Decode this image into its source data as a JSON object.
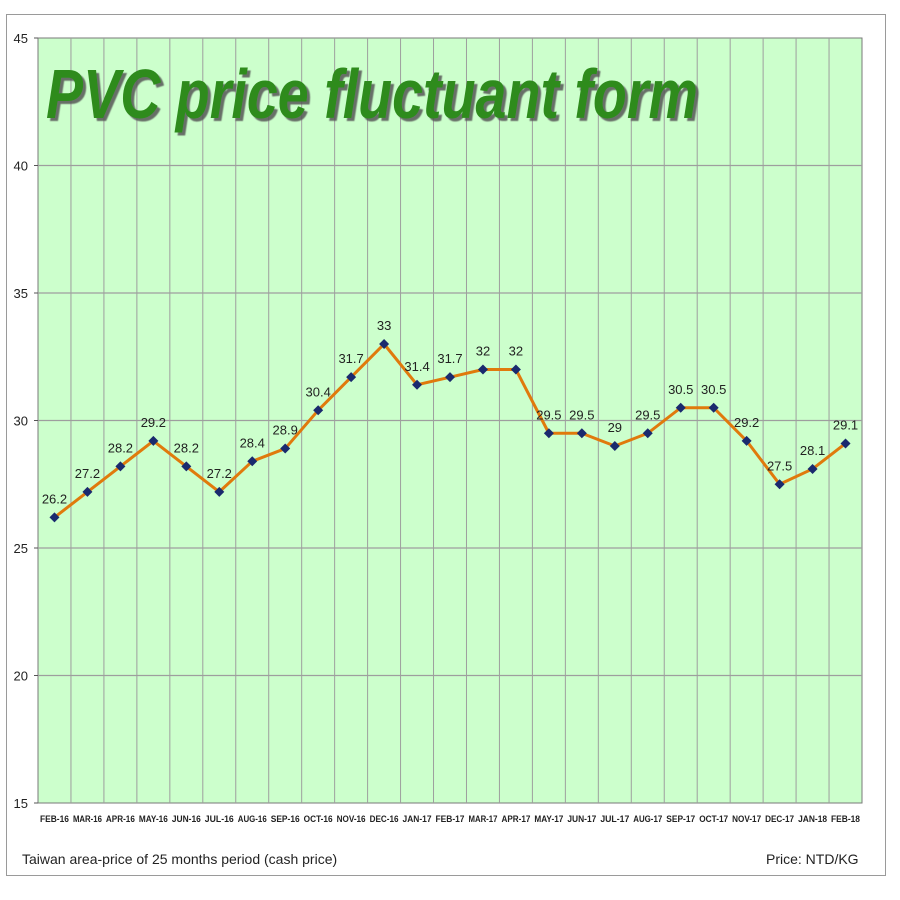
{
  "chart_data": {
    "type": "line",
    "title": "PVC price fluctuant form",
    "xlabel": "",
    "ylabel": "",
    "ylim": [
      15,
      45
    ],
    "yticks": [
      15,
      20,
      25,
      30,
      35,
      40,
      45
    ],
    "grid": true,
    "categories": [
      "FEB-16",
      "MAR-16",
      "APR-16",
      "MAY-16",
      "JUN-16",
      "JUL-16",
      "AUG-16",
      "SEP-16",
      "OCT-16",
      "NOV-16",
      "DEC-16",
      "JAN-17",
      "FEB-17",
      "MAR-17",
      "APR-17",
      "MAY-17",
      "JUN-17",
      "JUL-17",
      "AUG-17",
      "SEP-17",
      "OCT-17",
      "NOV-17",
      "DEC-17",
      "JAN-18",
      "FEB-18"
    ],
    "series": [
      {
        "values": [
          26.2,
          27.2,
          28.2,
          29.2,
          28.2,
          27.2,
          28.4,
          28.9,
          30.4,
          31.7,
          33,
          31.4,
          31.7,
          32,
          32,
          29.5,
          29.5,
          29,
          29.5,
          30.5,
          30.5,
          29.2,
          27.5,
          28.1,
          29.1
        ],
        "labels": [
          "26.2",
          "27.2",
          "28.2",
          "29.2",
          "28.2",
          "27.2",
          "28.4",
          "28.9",
          "30.4",
          "31.7",
          "33",
          "31.4",
          "31.7",
          "32",
          "32",
          "29.5",
          "29.5",
          "29",
          "29.5",
          "30.5",
          "30.5",
          "29.2",
          "27.5",
          "28.1",
          "29.1"
        ],
        "color": "#e07a0c",
        "marker_color": "#1a2a6e"
      }
    ],
    "plot_background": "#ccffcc",
    "title_color": "#2e8b1e",
    "grid_color": "#9e9e9e"
  },
  "notes": {
    "left": "Taiwan area-price of 25 months period (cash price)",
    "right": "Price: NTD/KG"
  }
}
